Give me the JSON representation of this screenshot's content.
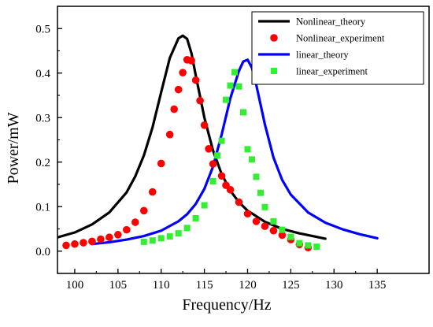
{
  "chart_data": {
    "type": "line",
    "xlabel": "Frequency/Hz",
    "ylabel": "Power/mW",
    "xlim": [
      98,
      141
    ],
    "ylim": [
      -0.05,
      0.55
    ],
    "xticks": [
      100,
      105,
      110,
      115,
      120,
      125,
      130,
      135
    ],
    "xtick_labels": [
      "100",
      "105",
      "110",
      "115",
      "120",
      "125",
      "130",
      "135"
    ],
    "yticks": [
      0.0,
      0.1,
      0.2,
      0.3,
      0.4,
      0.5
    ],
    "ytick_labels": [
      "0.0",
      "0.1",
      "0.2",
      "0.3",
      "0.4",
      "0.5"
    ],
    "legend_position": "top-right",
    "grid": false,
    "series": [
      {
        "name": "Nonlinear_theory",
        "kind": "line",
        "color": "#000000",
        "x": [
          98,
          100,
          102,
          104,
          106,
          107,
          108,
          109,
          110,
          111,
          112,
          112.5,
          113,
          113.5,
          114,
          115,
          116,
          117,
          118,
          119,
          120,
          122,
          124,
          126,
          129
        ],
        "y": [
          0.031,
          0.042,
          0.06,
          0.087,
          0.132,
          0.168,
          0.215,
          0.278,
          0.357,
          0.434,
          0.478,
          0.484,
          0.477,
          0.445,
          0.395,
          0.3,
          0.226,
          0.173,
          0.136,
          0.11,
          0.091,
          0.066,
          0.05,
          0.04,
          0.028
        ]
      },
      {
        "name": "Nonlinear_experiment",
        "kind": "scatter",
        "marker": "circle",
        "color": "#ff0000",
        "x": [
          99,
          100,
          101,
          102,
          103,
          104,
          105,
          106,
          107,
          108,
          109,
          110,
          111,
          111.5,
          112,
          112.5,
          113,
          113.5,
          114,
          114.5,
          115,
          115.5,
          116,
          117,
          117.5,
          118,
          119,
          120,
          121,
          122,
          123,
          124,
          125,
          126,
          127
        ],
        "y": [
          0.013,
          0.016,
          0.019,
          0.022,
          0.027,
          0.031,
          0.037,
          0.048,
          0.065,
          0.091,
          0.133,
          0.197,
          0.262,
          0.319,
          0.363,
          0.401,
          0.43,
          0.428,
          0.384,
          0.338,
          0.283,
          0.23,
          0.196,
          0.169,
          0.148,
          0.138,
          0.11,
          0.084,
          0.067,
          0.056,
          0.046,
          0.036,
          0.026,
          0.015,
          0.008
        ]
      },
      {
        "name": "linear_theory",
        "kind": "line",
        "color": "#0000ff",
        "x": [
          102,
          104,
          106,
          108,
          110,
          112,
          113,
          114,
          115,
          116,
          117,
          118,
          119,
          119.5,
          120,
          120.5,
          121,
          122,
          123,
          124,
          125,
          127,
          129,
          131,
          133,
          135
        ],
        "y": [
          0.016,
          0.02,
          0.026,
          0.034,
          0.046,
          0.067,
          0.083,
          0.106,
          0.14,
          0.19,
          0.262,
          0.343,
          0.405,
          0.426,
          0.43,
          0.412,
          0.374,
          0.285,
          0.21,
          0.16,
          0.127,
          0.087,
          0.064,
          0.049,
          0.038,
          0.029
        ]
      },
      {
        "name": "linear_experiment",
        "kind": "scatter",
        "marker": "square",
        "color": "#33ee33",
        "x": [
          108,
          109,
          110,
          111,
          112,
          113,
          114,
          115,
          116,
          116.5,
          117,
          117.5,
          118,
          118.5,
          119,
          119.5,
          120,
          120.5,
          121,
          121.5,
          122,
          123,
          124,
          125,
          126,
          127,
          128
        ],
        "y": [
          0.021,
          0.024,
          0.029,
          0.033,
          0.04,
          0.052,
          0.074,
          0.103,
          0.157,
          0.215,
          0.248,
          0.34,
          0.372,
          0.402,
          0.37,
          0.312,
          0.229,
          0.206,
          0.167,
          0.131,
          0.099,
          0.067,
          0.048,
          0.032,
          0.018,
          0.013,
          0.01
        ]
      }
    ]
  }
}
